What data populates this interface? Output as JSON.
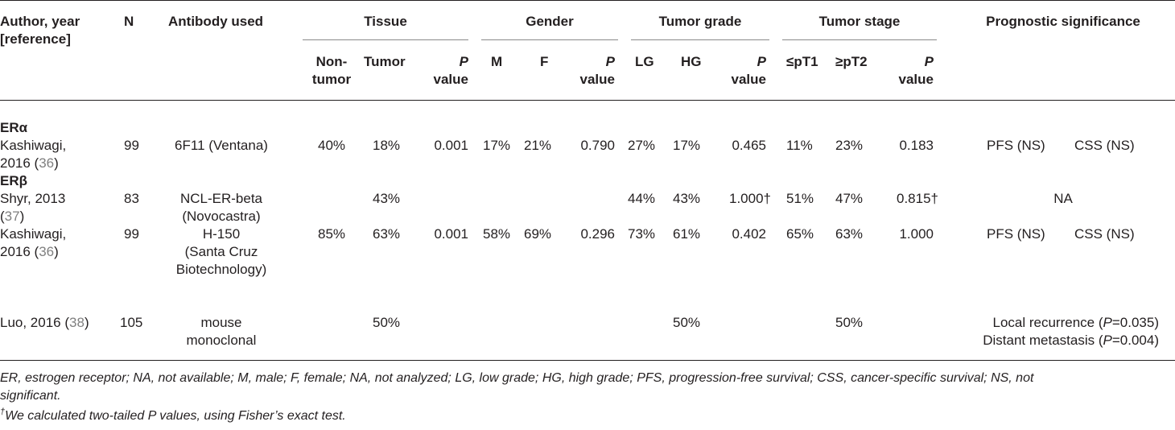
{
  "header": {
    "author_l1": "Author, year",
    "author_l2": "[reference]",
    "n": "N",
    "antibody": "Antibody used",
    "groups": {
      "tissue": "Tissue",
      "gender": "Gender",
      "grade": "Tumor grade",
      "stage": "Tumor stage",
      "prog": "Prognostic significance"
    },
    "sub": {
      "nontumor_l1": "Non-",
      "nontumor_l2": "tumor",
      "tumor": "Tumor",
      "p_l1": "P",
      "p_l2": "value",
      "m": "M",
      "f": "F",
      "lg": "LG",
      "hg": "HG",
      "lept1": "≤pT1",
      "gept2": "≥pT2"
    }
  },
  "sections": {
    "era": "ERα",
    "erb": "ERβ"
  },
  "rows": {
    "r1": {
      "author_l1": "Kashiwagi,",
      "author_l2_a": "2016 (",
      "ref": "36",
      "author_l2_b": ")",
      "n": "99",
      "antibody": "6F11 (Ventana)",
      "nontumor": "40%",
      "tumor": "18%",
      "p_tissue": "0.001",
      "m": "17%",
      "f": "21%",
      "p_gender": "0.790",
      "lg": "27%",
      "hg": "17%",
      "p_grade": "0.465",
      "lept1": "11%",
      "gept2": "23%",
      "p_stage": "0.183",
      "prog_a": "PFS (NS)",
      "prog_b": "CSS (NS)"
    },
    "r2": {
      "author_l1": "Shyr, 2013",
      "author_l2_a": "(",
      "ref": "37",
      "author_l2_b": ")",
      "n": "83",
      "antibody_l1": "NCL-ER-beta",
      "antibody_l2": "(Novocastra)",
      "tumor": "43%",
      "lg": "44%",
      "hg": "43%",
      "p_grade": "1.000†",
      "lept1": "51%",
      "gept2": "47%",
      "p_stage": "0.815†",
      "prog": "NA"
    },
    "r3": {
      "author_l1": "Kashiwagi,",
      "author_l2_a": "2016 (",
      "ref": "36",
      "author_l2_b": ")",
      "n": "99",
      "antibody_l1": "H-150",
      "antibody_l2": "(Santa Cruz",
      "antibody_l3": "Biotechnology)",
      "nontumor": "85%",
      "tumor": "63%",
      "p_tissue": "0.001",
      "m": "58%",
      "f": "69%",
      "p_gender": "0.296",
      "lg": "73%",
      "hg": "61%",
      "p_grade": "0.402",
      "lept1": "65%",
      "gept2": "63%",
      "p_stage": "1.000",
      "prog_a": "PFS (NS)",
      "prog_b": "CSS (NS)"
    },
    "r4": {
      "author_a": "Luo, 2016 (",
      "ref": "38",
      "author_b": ")",
      "n": "105",
      "antibody_l1": "mouse",
      "antibody_l2": "monoclonal",
      "tumor": "50%",
      "hg": "50%",
      "gept2": "50%",
      "prog1_a": "Local recurrence (",
      "prog1_p": "P",
      "prog1_b": "=0.035)",
      "prog2_a": "Distant metastasis (",
      "prog2_p": "P",
      "prog2_b": "=0.004)"
    }
  },
  "footnotes": {
    "abbrev_l1": "ER, estrogen receptor; NA, not available; M, male; F, female; NA, not analyzed; LG, low grade; HG, high grade; PFS, progression-free survival; CSS, cancer-specific survival; NS, not",
    "abbrev_l2": "significant.",
    "dagger": "†",
    "fisher": "We calculated two-tailed P values, using Fisher’s exact test."
  }
}
